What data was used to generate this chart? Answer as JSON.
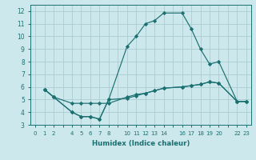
{
  "xlabel": "Humidex (Indice chaleur)",
  "bg_color": "#cde8ec",
  "grid_color": "#aaccd0",
  "line_color": "#1a7070",
  "xlim": [
    -0.5,
    23.5
  ],
  "ylim": [
    3.0,
    12.5
  ],
  "xtick_positions": [
    0,
    1,
    2,
    3,
    4,
    5,
    6,
    7,
    8,
    9,
    10,
    11,
    12,
    13,
    14,
    15,
    16,
    17,
    18,
    19,
    20,
    21,
    22,
    23
  ],
  "xtick_labels": [
    "0",
    "1",
    "2",
    "",
    "4",
    "5",
    "6",
    "7",
    "8",
    "",
    "10",
    "11",
    "12",
    "13",
    "14",
    "",
    "16",
    "17",
    "18",
    "19",
    "20",
    "",
    "22",
    "23"
  ],
  "ytick_positions": [
    3,
    4,
    5,
    6,
    7,
    8,
    9,
    10,
    11,
    12
  ],
  "ytick_labels": [
    "3",
    "4",
    "5",
    "6",
    "7",
    "8",
    "9",
    "10",
    "11",
    "12"
  ],
  "line1_x": [
    1,
    2,
    4,
    5,
    6,
    7,
    8,
    10,
    11,
    12,
    13,
    14,
    16,
    17,
    18,
    19,
    20,
    22,
    23
  ],
  "line1_y": [
    5.8,
    5.2,
    4.7,
    4.7,
    4.7,
    4.7,
    4.7,
    5.2,
    5.4,
    5.5,
    5.7,
    5.9,
    6.0,
    6.1,
    6.2,
    6.4,
    6.3,
    4.85,
    4.85
  ],
  "line2_x": [
    1,
    2,
    4,
    5,
    6,
    7,
    8,
    10,
    11,
    12,
    13,
    14,
    16,
    17,
    18,
    19,
    20,
    22,
    23
  ],
  "line2_y": [
    5.8,
    5.2,
    4.0,
    3.65,
    3.65,
    3.45,
    5.0,
    9.2,
    10.0,
    11.0,
    11.25,
    11.85,
    11.85,
    10.6,
    9.0,
    7.8,
    8.0,
    4.85,
    4.85
  ],
  "line3_x": [
    1,
    2,
    4,
    5,
    6,
    7,
    8,
    10,
    11,
    12,
    13,
    14,
    16,
    17,
    18,
    19,
    20,
    22,
    23
  ],
  "line3_y": [
    5.8,
    5.2,
    4.0,
    3.65,
    3.65,
    3.45,
    5.0,
    5.1,
    5.3,
    5.5,
    5.7,
    5.9,
    6.0,
    6.1,
    6.2,
    6.4,
    6.3,
    4.85,
    4.85
  ]
}
